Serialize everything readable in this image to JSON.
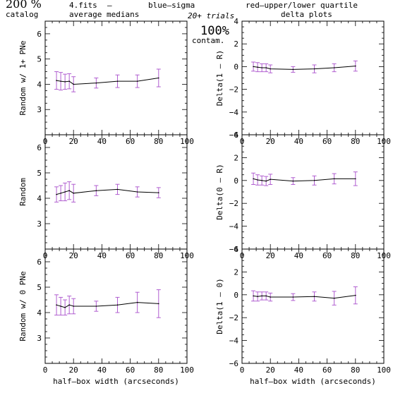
{
  "header": {
    "left_big": "200 %",
    "catalog": "catalog",
    "file": "4.fits",
    "dash": "–",
    "medians": "average medians",
    "blue": "blue–sigma",
    "red": "red–upper/lower quartile",
    "trials": "20+ trials",
    "contam_pct": "100%",
    "contam": "contam.",
    "delta_plots": "delta plots",
    "blue_color": "#3b3bdb",
    "red_color": "#e05555",
    "err_color": "#b05ed0"
  },
  "chart_data": [
    {
      "type": "line",
      "panel": "left-top",
      "ylabel": "Random w/ 1+ PNe",
      "xlabel": "",
      "ylim": [
        2,
        6.5
      ],
      "xlim": [
        0,
        100
      ],
      "xticks": [
        "0",
        "20",
        "40",
        "60",
        "80",
        "100"
      ],
      "yticks": [
        "3",
        "4",
        "5",
        "6"
      ],
      "x": [
        8,
        11,
        14,
        17,
        20,
        36,
        51,
        65,
        80
      ],
      "y": [
        4.15,
        4.12,
        4.1,
        4.12,
        4.0,
        4.05,
        4.12,
        4.12,
        4.25
      ],
      "err": [
        0.35,
        0.35,
        0.3,
        0.3,
        0.3,
        0.2,
        0.25,
        0.25,
        0.35
      ]
    },
    {
      "type": "line",
      "panel": "left-middle",
      "ylabel": "Random",
      "xlabel": "",
      "ylim": [
        2,
        6.5
      ],
      "xlim": [
        0,
        100
      ],
      "xticks": [
        "0",
        "20",
        "40",
        "60",
        "80",
        "100"
      ],
      "yticks": [
        "3",
        "4",
        "5",
        "6"
      ],
      "x": [
        8,
        11,
        14,
        17,
        20,
        36,
        51,
        65,
        80
      ],
      "y": [
        4.15,
        4.2,
        4.25,
        4.3,
        4.2,
        4.3,
        4.35,
        4.25,
        4.22
      ],
      "err": [
        0.3,
        0.3,
        0.35,
        0.35,
        0.35,
        0.2,
        0.2,
        0.2,
        0.2
      ]
    },
    {
      "type": "line",
      "panel": "left-bottom",
      "ylabel": "Random w/ 0 PNe",
      "xlabel": "half–box width (arcseconds)",
      "ylim": [
        2,
        6.5
      ],
      "xlim": [
        0,
        100
      ],
      "xticks": [
        "0",
        "20",
        "40",
        "60",
        "80",
        "100"
      ],
      "yticks": [
        "3",
        "4",
        "5",
        "6"
      ],
      "x": [
        8,
        11,
        14,
        17,
        20,
        36,
        51,
        65,
        80
      ],
      "y": [
        4.3,
        4.25,
        4.2,
        4.3,
        4.25,
        4.25,
        4.3,
        4.4,
        4.35
      ],
      "err": [
        0.4,
        0.35,
        0.3,
        0.35,
        0.3,
        0.2,
        0.3,
        0.4,
        0.55
      ]
    },
    {
      "type": "line",
      "panel": "right-top",
      "ylabel": "Delta(1 – R)",
      "xlabel": "",
      "ylim": [
        -6,
        4
      ],
      "xlim": [
        0,
        100
      ],
      "xticks": [
        "0",
        "20",
        "40",
        "60",
        "80",
        "100"
      ],
      "yticks": [
        "−6",
        "−4",
        "−2",
        "0",
        "2",
        "4"
      ],
      "x": [
        8,
        11,
        14,
        17,
        20,
        36,
        51,
        65,
        80
      ],
      "y": [
        0.0,
        -0.05,
        -0.1,
        -0.1,
        -0.2,
        -0.25,
        -0.2,
        -0.1,
        0.05
      ],
      "err": [
        0.4,
        0.4,
        0.35,
        0.35,
        0.35,
        0.25,
        0.35,
        0.35,
        0.45
      ]
    },
    {
      "type": "line",
      "panel": "right-middle",
      "ylabel": "Delta(0 – R)",
      "xlabel": "",
      "ylim": [
        -6,
        4
      ],
      "xlim": [
        0,
        100
      ],
      "xticks": [
        "0",
        "20",
        "40",
        "60",
        "80",
        "100"
      ],
      "yticks": [
        "−6",
        "−4",
        "−2",
        "0",
        "2",
        "4"
      ],
      "x": [
        8,
        11,
        14,
        17,
        20,
        36,
        51,
        65,
        80
      ],
      "y": [
        0.15,
        0.05,
        0.0,
        -0.05,
        0.1,
        -0.05,
        0.0,
        0.15,
        0.15
      ],
      "err": [
        0.5,
        0.45,
        0.4,
        0.4,
        0.45,
        0.3,
        0.4,
        0.45,
        0.6
      ]
    },
    {
      "type": "line",
      "panel": "right-bottom",
      "ylabel": "Delta(1 – 0)",
      "xlabel": "half–box width (arcseconds)",
      "ylim": [
        -6,
        4
      ],
      "xlim": [
        0,
        100
      ],
      "xticks": [
        "0",
        "20",
        "40",
        "60",
        "80",
        "100"
      ],
      "yticks": [
        "−6",
        "−4",
        "−2",
        "0",
        "2",
        "4"
      ],
      "x": [
        8,
        11,
        14,
        17,
        20,
        36,
        51,
        65,
        80
      ],
      "y": [
        -0.1,
        -0.15,
        -0.1,
        -0.1,
        -0.2,
        -0.2,
        -0.15,
        -0.3,
        -0.05
      ],
      "err": [
        0.45,
        0.4,
        0.35,
        0.35,
        0.35,
        0.3,
        0.4,
        0.6,
        0.75
      ]
    }
  ]
}
